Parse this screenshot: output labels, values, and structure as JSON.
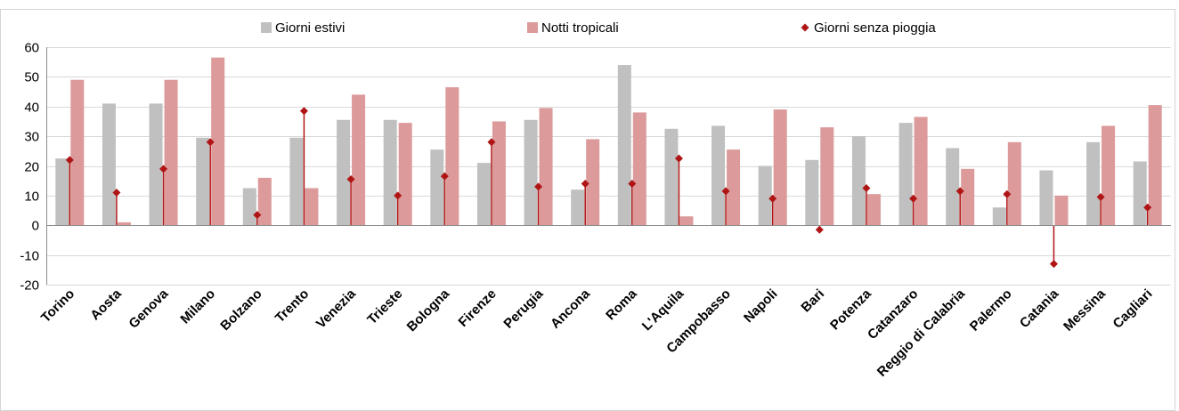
{
  "chart_data": {
    "type": "bar",
    "categories": [
      "Torino",
      "Aosta",
      "Genova",
      "Milano",
      "Bolzano",
      "Trento",
      "Venezia",
      "Trieste",
      "Bologna",
      "Firenze",
      "Perugia",
      "Ancona",
      "Roma",
      "L'Aquila",
      "Campobasso",
      "Napoli",
      "Bari",
      "Potenza",
      "Catanzaro",
      "Reggio di Calabria",
      "Palermo",
      "Catania",
      "Messina",
      "Cagliari"
    ],
    "series": [
      {
        "name": "Giorni estivi",
        "kind": "bar",
        "color": "#c0c0c0",
        "values": [
          22.5,
          41,
          41,
          29.5,
          12.5,
          29.5,
          35.5,
          35.5,
          25.5,
          21,
          35.5,
          12,
          54,
          32.5,
          33.5,
          20,
          22,
          30,
          34.5,
          26,
          6,
          18.5,
          28,
          21.5
        ]
      },
      {
        "name": "Notti tropicali",
        "kind": "bar",
        "color": "#dc9a9a",
        "values": [
          49,
          1,
          49,
          56.5,
          16,
          12.5,
          44,
          34.5,
          46.5,
          35,
          39.5,
          29,
          38,
          3,
          25.5,
          39,
          33,
          10.5,
          36.5,
          19,
          28,
          10,
          33.5,
          40.5
        ]
      },
      {
        "name": "Giorni senza pioggia",
        "kind": "stem",
        "color": "#b01515",
        "values": [
          22,
          11,
          19,
          28,
          3.5,
          38.5,
          15.5,
          10,
          16.5,
          28,
          13,
          14,
          14,
          22.5,
          11.5,
          9,
          -1.5,
          12.5,
          9,
          11.5,
          10.5,
          -13,
          9.5,
          6
        ]
      }
    ],
    "y_ticks": [
      "60",
      "50",
      "40",
      "30",
      "20",
      "10",
      "0",
      "-10",
      "-20"
    ],
    "ylim": [
      -20,
      60
    ],
    "grid": true,
    "legend": "top"
  }
}
